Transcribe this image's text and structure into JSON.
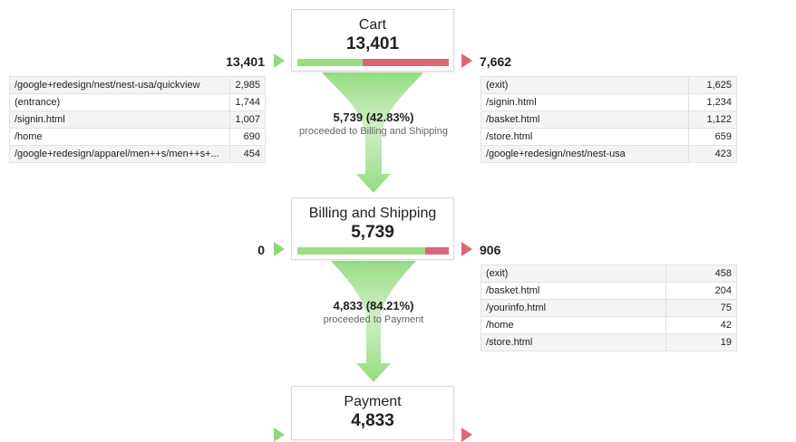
{
  "steps": [
    {
      "title": "Cart",
      "count": "13,401",
      "entries": "13,401",
      "exits": "7,662",
      "proceed_fraction": 0.4283,
      "entry_sources": [
        {
          "path": "/google+redesign/nest/nest-usa/quickview",
          "value": "2,985"
        },
        {
          "path": "(entrance)",
          "value": "1,744"
        },
        {
          "path": "/signin.html",
          "value": "1,007"
        },
        {
          "path": "/home",
          "value": "690"
        },
        {
          "path": "/google+redesign/apparel/men++s/men++s+...",
          "value": "454"
        }
      ],
      "exit_targets": [
        {
          "path": "(exit)",
          "value": "1,625"
        },
        {
          "path": "/signin.html",
          "value": "1,234"
        },
        {
          "path": "/basket.html",
          "value": "1,122"
        },
        {
          "path": "/store.html",
          "value": "659"
        },
        {
          "path": "/google+redesign/nest/nest-usa",
          "value": "423"
        }
      ],
      "conversion": {
        "main": "5,739 (42.83%)",
        "sub": "proceeded to Billing and Shipping"
      }
    },
    {
      "title": "Billing and Shipping",
      "count": "5,739",
      "entries": "0",
      "exits": "906",
      "proceed_fraction": 0.8421,
      "exit_targets": [
        {
          "path": "(exit)",
          "value": "458"
        },
        {
          "path": "/basket.html",
          "value": "204"
        },
        {
          "path": "/yourinfo.html",
          "value": "75"
        },
        {
          "path": "/home",
          "value": "42"
        },
        {
          "path": "/store.html",
          "value": "19"
        }
      ],
      "conversion": {
        "main": "4,833 (84.21%)",
        "sub": "proceeded to Payment"
      }
    },
    {
      "title": "Payment",
      "count": "4,833"
    }
  ],
  "colors": {
    "proceed": "#9ade83",
    "exit": "#dd6776",
    "funnel": "#8fd97b"
  }
}
